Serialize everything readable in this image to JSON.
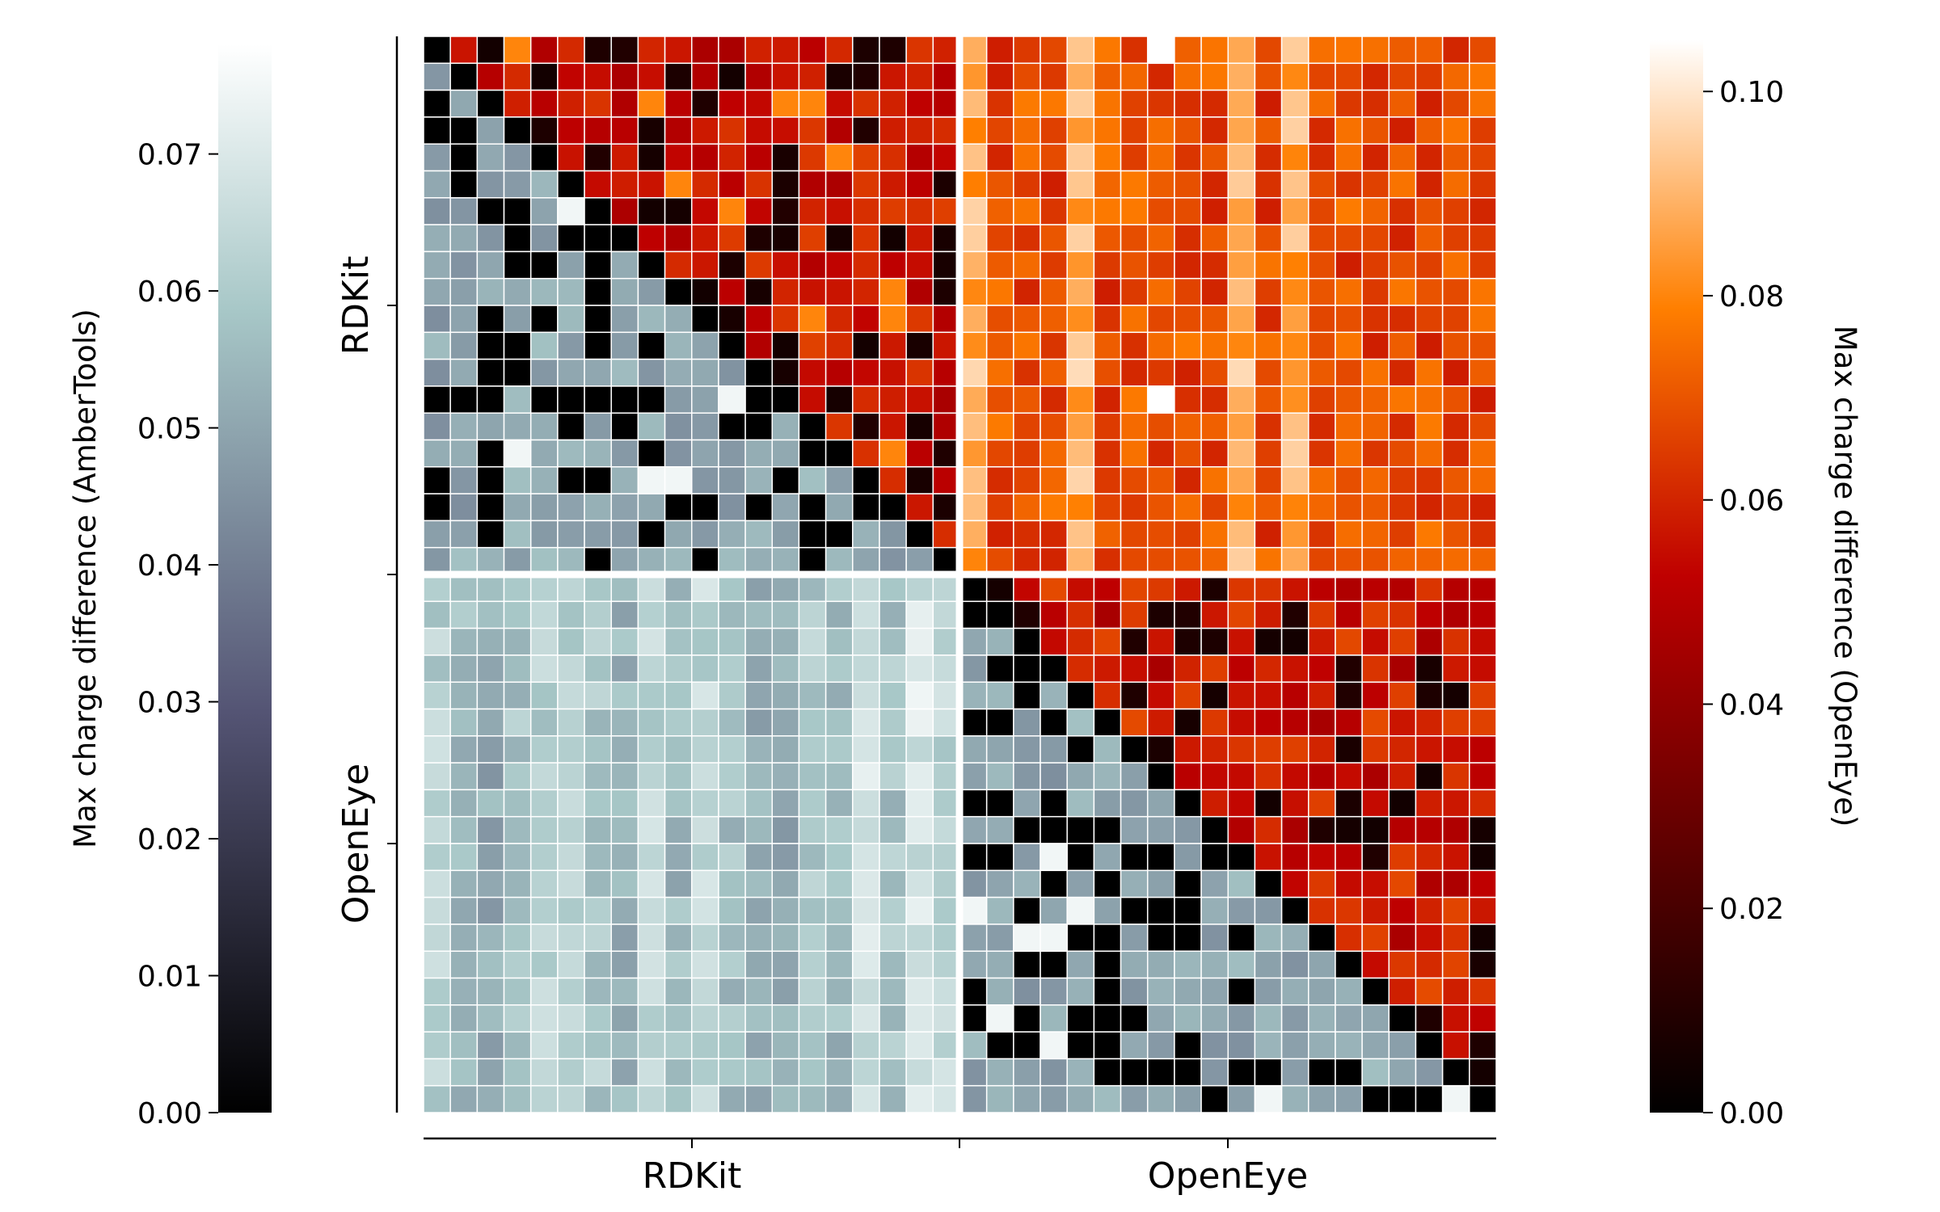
{
  "chart_data": {
    "type": "heatmap",
    "title": "",
    "row_groups": [
      "RDKit",
      "OpenEye"
    ],
    "column_groups": [
      "RDKit",
      "OpenEye"
    ],
    "grid_size": 40,
    "group_size": 20,
    "layout_note": "Pairwise comparison matrix: cells below the diagonal use the AmberTools colormap (bone), cells on/above the diagonal use the OpenEye colormap (gist_heat).",
    "colorbar_left": {
      "label": "Max charge difference (AmberTools)",
      "colormap": "bone",
      "range": [
        0,
        0.078
      ],
      "ticks": [
        0.0,
        0.01,
        0.02,
        0.03,
        0.04,
        0.05,
        0.06,
        0.07
      ],
      "tick_labels": [
        "0.00",
        "0.01",
        "0.02",
        "0.03",
        "0.04",
        "0.05",
        "0.06",
        "0.07"
      ]
    },
    "colorbar_right": {
      "label": "Max charge difference (OpenEye)",
      "colormap": "gist_heat",
      "range": [
        0,
        0.105
      ],
      "ticks": [
        0.0,
        0.02,
        0.04,
        0.06,
        0.08,
        0.1
      ],
      "tick_labels": [
        "0.00",
        "0.02",
        "0.04",
        "0.06",
        "0.08",
        "0.10"
      ]
    },
    "approximate_cell_values": {
      "amber_rdkit_rdkit": [
        0.0,
        0.055
      ],
      "amber_openeye_rdkit": [
        0.045,
        0.075
      ],
      "amber_openeye_openeye": [
        0.0,
        0.058
      ],
      "openeye_rdkit_rdkit": [
        0.0,
        0.09
      ],
      "openeye_rdkit_openeye": [
        0.055,
        0.105
      ],
      "openeye_openeye_openeye": [
        0.0,
        0.062
      ]
    }
  }
}
